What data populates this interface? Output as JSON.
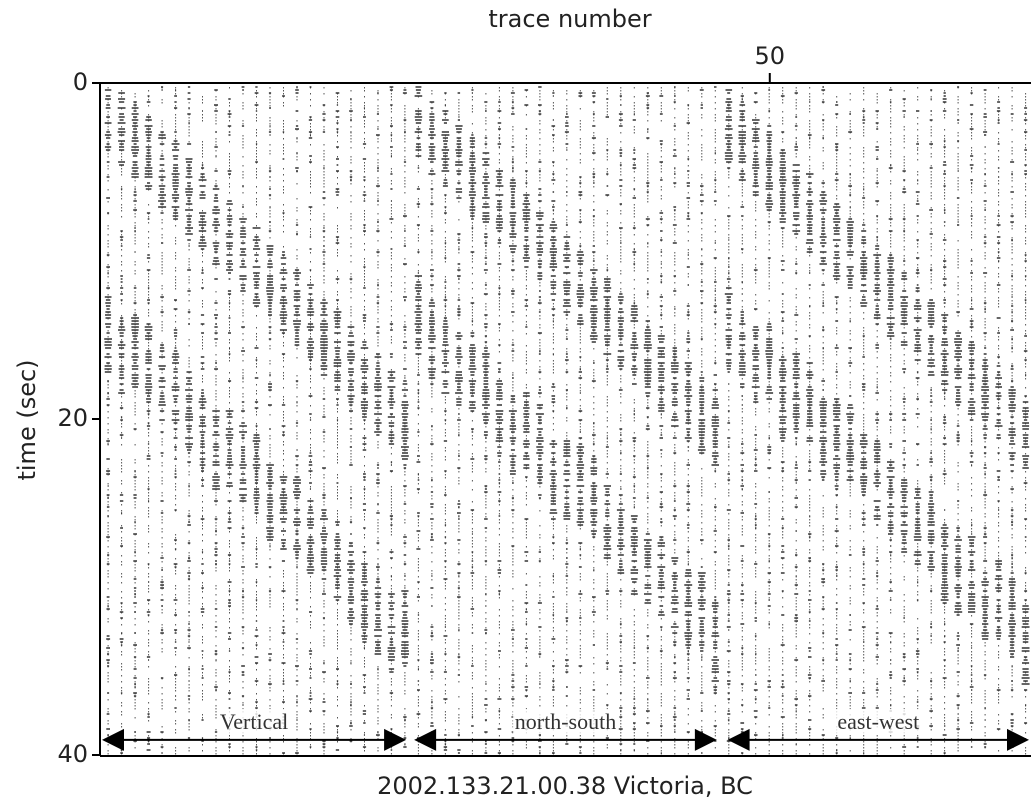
{
  "chart_data": {
    "type": "record-section",
    "title": "2002.133.21.00.38 Victoria, BC",
    "x_label": "trace number",
    "y_label": "time (sec)",
    "xlim": [
      0,
      69.5
    ],
    "xticks": [
      50
    ],
    "ylim": [
      0,
      40
    ],
    "yticks": [
      0,
      20,
      40
    ],
    "y_inverted": true,
    "arrow_time": 39.1,
    "segments": [
      {
        "label": "Vertical",
        "start": 0,
        "end": 23
      },
      {
        "label": "north-south",
        "start": 23.3,
        "end": 46.2
      },
      {
        "label": "east-west",
        "start": 46.7,
        "end": 69.5
      }
    ]
  }
}
